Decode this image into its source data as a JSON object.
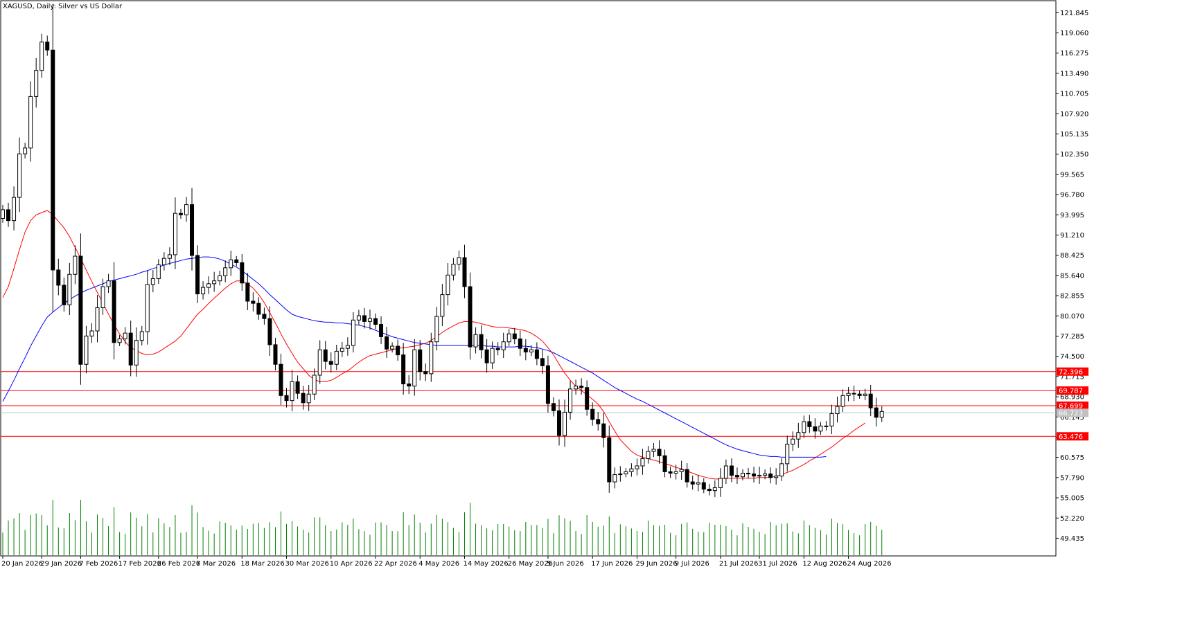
{
  "window": {
    "title": "XAGUSD, Daily:  Silver vs US Dollar"
  },
  "chart_data": {
    "type": "candlestick",
    "symbol": "XAGUSD",
    "timeframe": "Daily",
    "title": "XAGUSD, Daily:  Silver vs US Dollar",
    "ylim": [
      47.0,
      123.5
    ],
    "y_ticks": [
      "121.845",
      "119.060",
      "116.275",
      "113.490",
      "110.705",
      "107.920",
      "105.135",
      "102.350",
      "99.565",
      "96.780",
      "93.995",
      "91.210",
      "88.425",
      "85.640",
      "82.855",
      "80.070",
      "77.285",
      "74.500",
      "71.715",
      "68.930",
      "66.145",
      "63.360",
      "60.575",
      "57.790",
      "55.005",
      "52.220",
      "49.435"
    ],
    "x_ticks": [
      {
        "label": "20 Jan 2026",
        "index": 0
      },
      {
        "label": "29 Jan 2026",
        "index": 7
      },
      {
        "label": "7 Feb 2026",
        "index": 14
      },
      {
        "label": "17 Feb 2026",
        "index": 21
      },
      {
        "label": "26 Feb 2026",
        "index": 28
      },
      {
        "label": "7 Mar 2026",
        "index": 35
      },
      {
        "label": "18 Mar 2026",
        "index": 43
      },
      {
        "label": "30 Mar 2026",
        "index": 51
      },
      {
        "label": "10 Apr 2026",
        "index": 59
      },
      {
        "label": "22 Apr 2026",
        "index": 67
      },
      {
        "label": "4 May 2026",
        "index": 75
      },
      {
        "label": "14 May 2026",
        "index": 83
      },
      {
        "label": "26 May 2026",
        "index": 91
      },
      {
        "label": "5 Jun 2026",
        "index": 98
      },
      {
        "label": "17 Jun 2026",
        "index": 106
      },
      {
        "label": "29 Jun 2026",
        "index": 114
      },
      {
        "label": "9 Jul 2026",
        "index": 121
      },
      {
        "label": "21 Jul 2026",
        "index": 129
      },
      {
        "label": "31 Jul 2026",
        "index": 136
      },
      {
        "label": "12 Aug 2026",
        "index": 144
      },
      {
        "label": "24 Aug 2026",
        "index": 152
      }
    ],
    "levels": [
      {
        "value": 72.396,
        "label": "72.396"
      },
      {
        "value": 69.787,
        "label": "69.787"
      },
      {
        "value": 67.699,
        "label": "67.699"
      },
      {
        "value": 63.476,
        "label": "63.476"
      }
    ],
    "current_price": {
      "value": 66.72,
      "label": "66.723"
    },
    "closes": [
      94.7,
      93.2,
      96.4,
      102.4,
      103.2,
      110.3,
      113.9,
      117.8,
      116.7,
      86.4,
      84.3,
      81.6,
      85.8,
      88.3,
      73.4,
      77.3,
      78.0,
      81.2,
      84.1,
      84.9,
      76.4,
      76.9,
      77.7,
      73.3,
      76.7,
      77.9,
      84.4,
      85.2,
      87.1,
      88.0,
      88.5,
      94.2,
      94.0,
      95.4,
      88.4,
      83.1,
      84.0,
      84.5,
      84.9,
      85.6,
      86.7,
      87.8,
      87.4,
      84.6,
      82.1,
      81.8,
      80.3,
      79.7,
      76.1,
      73.4,
      69.1,
      68.4,
      71.0,
      69.4,
      68.1,
      69.3,
      71.9,
      75.4,
      73.8,
      73.4,
      75.2,
      75.6,
      76.0,
      79.5,
      80.1,
      79.3,
      79.7,
      78.9,
      77.2,
      75.5,
      75.9,
      74.7,
      70.7,
      70.4,
      75.4,
      72.4,
      72.1,
      76.5,
      80.0,
      83.0,
      85.7,
      87.2,
      88.1,
      84.1,
      75.8,
      77.5,
      75.4,
      73.6,
      75.6,
      75.4,
      76.5,
      77.6,
      76.9,
      75.6,
      75.1,
      75.4,
      74.2,
      73.2,
      68.0,
      67.0,
      63.6,
      66.8,
      70.0,
      70.4,
      70.2,
      67.2,
      65.8,
      65.2,
      63.3,
      57.2,
      58.2,
      58.3,
      58.6,
      59.0,
      59.4,
      60.4,
      61.4,
      61.7,
      60.8,
      58.6,
      58.4,
      58.6,
      58.9,
      57.2,
      56.9,
      57.1,
      56.2,
      56.0,
      56.4,
      57.7,
      59.4,
      58.1,
      57.9,
      58.4,
      58.3,
      58.0,
      58.1,
      58.3,
      57.8,
      58.0,
      59.7,
      62.4,
      63.1,
      64.0,
      65.5,
      64.8,
      64.2,
      64.9,
      64.9,
      66.6,
      67.6,
      69.1,
      69.4,
      69.3,
      69.1,
      69.3,
      67.4,
      66.1,
      66.9
    ],
    "ma_fast": {
      "color": "#ff0000",
      "values": [
        82.6,
        84.1,
        86.6,
        89.2,
        91.6,
        93.2,
        94.0,
        94.3,
        94.6,
        94.0,
        93.1,
        92.2,
        91.0,
        89.5,
        88.0,
        86.4,
        84.8,
        83.3,
        81.8,
        80.3,
        78.9,
        77.6,
        76.5,
        75.7,
        75.3,
        74.9,
        74.7,
        74.8,
        75.1,
        75.6,
        76.1,
        76.6,
        77.3,
        78.3,
        79.3,
        80.3,
        81.0,
        81.8,
        82.5,
        83.2,
        83.9,
        84.5,
        84.9,
        84.9,
        84.5,
        83.9,
        83.0,
        81.9,
        80.5,
        79.1,
        77.6,
        76.2,
        74.9,
        73.7,
        72.8,
        71.9,
        71.3,
        71.0,
        71.0,
        71.2,
        71.6,
        72.1,
        72.5,
        73.1,
        73.7,
        74.2,
        74.6,
        74.8,
        75.0,
        75.2,
        75.4,
        75.6,
        75.7,
        75.8,
        75.9,
        76.1,
        76.3,
        76.7,
        77.2,
        77.8,
        78.3,
        78.7,
        79.1,
        79.3,
        79.3,
        79.2,
        79.0,
        78.8,
        78.6,
        78.5,
        78.5,
        78.4,
        78.3,
        78.2,
        78.0,
        77.7,
        77.2,
        76.6,
        75.7,
        74.7,
        73.4,
        72.2,
        71.2,
        70.4,
        69.8,
        69.2,
        68.6,
        67.9,
        66.9,
        65.5,
        64.2,
        63.0,
        62.2,
        61.4,
        60.9,
        60.6,
        60.4,
        60.2,
        60.0,
        59.7,
        59.5,
        59.2,
        59.0,
        58.7,
        58.4,
        58.1,
        57.9,
        57.7,
        57.6,
        57.6,
        57.7,
        57.7,
        57.7,
        57.7,
        57.7,
        57.7,
        57.8,
        57.8,
        57.8,
        58.0,
        58.2,
        58.5,
        58.8,
        59.2,
        59.6,
        60.1,
        60.5,
        61.0,
        61.5,
        62.0,
        62.6,
        63.2,
        63.7,
        64.3,
        64.8,
        65.3
      ]
    },
    "ma_slow": {
      "color": "#0000ff",
      "values": [
        68.3,
        69.7,
        71.2,
        72.8,
        74.3,
        75.9,
        77.3,
        78.7,
        79.9,
        80.6,
        81.2,
        81.8,
        82.3,
        82.8,
        83.2,
        83.6,
        83.9,
        84.2,
        84.5,
        84.8,
        85.0,
        85.2,
        85.4,
        85.6,
        85.8,
        86.1,
        86.3,
        86.6,
        86.8,
        87.1,
        87.3,
        87.5,
        87.7,
        87.9,
        88.0,
        88.1,
        88.2,
        88.2,
        88.1,
        87.9,
        87.6,
        87.2,
        86.8,
        86.3,
        85.7,
        85.1,
        84.5,
        83.8,
        83.0,
        82.3,
        81.6,
        80.9,
        80.3,
        80.0,
        79.8,
        79.6,
        79.4,
        79.3,
        79.2,
        79.2,
        79.1,
        79.1,
        79.0,
        78.9,
        78.8,
        78.6,
        78.4,
        78.1,
        77.8,
        77.5,
        77.2,
        77.0,
        76.8,
        76.6,
        76.4,
        76.3,
        76.2,
        76.1,
        76.0,
        76.0,
        76.0,
        76.0,
        76.0,
        76.0,
        76.0,
        76.0,
        76.0,
        75.9,
        75.9,
        75.8,
        75.8,
        75.8,
        75.8,
        75.9,
        75.9,
        75.8,
        75.7,
        75.5,
        75.3,
        75.0,
        74.6,
        74.2,
        73.8,
        73.4,
        73.0,
        72.6,
        72.2,
        71.7,
        71.2,
        70.7,
        70.2,
        69.8,
        69.4,
        69.0,
        68.6,
        68.3,
        67.9,
        67.5,
        67.1,
        66.7,
        66.3,
        65.9,
        65.5,
        65.1,
        64.7,
        64.3,
        63.9,
        63.5,
        63.1,
        62.7,
        62.3,
        62.0,
        61.7,
        61.5,
        61.3,
        61.1,
        60.9,
        60.8,
        60.7,
        60.7,
        60.6,
        60.6,
        60.6,
        60.6,
        60.6,
        60.6,
        60.6,
        60.6,
        60.7
      ]
    }
  }
}
